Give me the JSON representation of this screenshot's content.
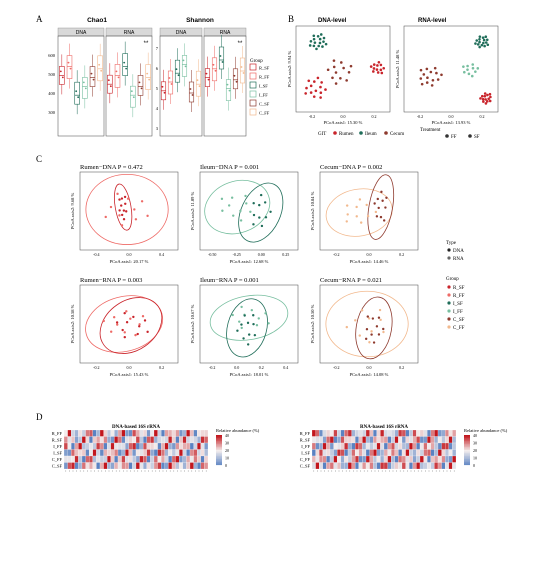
{
  "panel_labels": {
    "a": "A",
    "b": "B",
    "c": "C",
    "d": "D"
  },
  "colors": {
    "R_SF": "#c9242b",
    "R_FF": "#ee6a66",
    "I_SF": "#1f6d59",
    "I_FF": "#78bfa0",
    "C_SF": "#8e3a2e",
    "C_FF": "#f2b98e",
    "DNA": "#222222",
    "RNA": "#666666",
    "heat_high": "#c2161d",
    "heat_mid": "#f3eded",
    "heat_low": "#5a82c2"
  },
  "panel_a": {
    "groups": [
      {
        "name": "Chao1",
        "subpanels": [
          {
            "label": "DNA",
            "sig": ""
          },
          {
            "label": "RNA",
            "sig": "**"
          }
        ]
      },
      {
        "name": "Shannon",
        "subpanels": [
          {
            "label": "DNA",
            "sig": ""
          },
          {
            "label": "RNA",
            "sig": "**"
          }
        ]
      }
    ],
    "chao_ticks": [
      "600",
      "500",
      "400",
      "300"
    ],
    "shannon_ticks": [
      "7",
      "6",
      "5",
      "4",
      "3"
    ],
    "legend_title": "Group",
    "legend_items": [
      "R_SF",
      "R_FF",
      "I_SF",
      "I_FF",
      "C_SF",
      "C_FF"
    ]
  },
  "panel_b": {
    "plots": [
      {
        "title": "DNA-level",
        "ylabel": "PCoA axis2: 9.94 %",
        "xlabel": "PCoA axis1: 15.30 %",
        "xticks": [
          "-0.2",
          "0.0",
          "0.2"
        ]
      },
      {
        "title": "RNA-level",
        "ylabel": "PCoA axis2: 11.48 %",
        "xlabel": "PCoA axis1: 13.93 %",
        "xticks": [
          "-0.2",
          "0.0",
          "0.2"
        ]
      }
    ],
    "legend_git_title": "GIT",
    "legend_git": [
      "Rumen",
      "Ileum",
      "Cecum"
    ],
    "legend_treat_title": "Treatment",
    "legend_treat": [
      "FF",
      "SF"
    ]
  },
  "panel_c": {
    "plots": [
      {
        "region": "Rumen",
        "title": "Rumen−DNA",
        "p": "P = 0.472",
        "xlabel": "PCoA axis1: 20.17 %",
        "ylabel": "PCoA axis2: 9.68 %",
        "xticks": [
          "-0.4",
          "0.0",
          "0.4"
        ]
      },
      {
        "region": "Ileum",
        "title": "Ileum−DNA",
        "p": "P = 0.001",
        "xlabel": "PCoA axis1: 12.68 %",
        "ylabel": "PCoA axis2: 11.09 %",
        "xticks": [
          "-0.50",
          "-0.25",
          "0.00",
          "0.25"
        ]
      },
      {
        "region": "Cecum",
        "title": "Cecum−DNA",
        "p": "P = 0.002",
        "xlabel": "PCoA axis1: 14.46 %",
        "ylabel": "PCoA axis2: 10.84 %",
        "xticks": [
          "-0.2",
          "0.0",
          "0.2"
        ]
      },
      {
        "region": "Rumen",
        "title": "Rumen−RNA",
        "p": "P = 0.003",
        "xlabel": "PCoA axis1: 15.43 %",
        "ylabel": "PCoA axis2: 10.58 %",
        "xticks": [
          "-0.2",
          "0.0",
          "0.2"
        ]
      },
      {
        "region": "Ileum",
        "title": "Ileum−RNA",
        "p": "P = 0.001",
        "xlabel": "PCoA axis1: 18.01 %",
        "ylabel": "PCoA axis2: 10.67 %",
        "xticks": [
          "-0.2",
          "0.0",
          "0.2",
          "0.4"
        ]
      },
      {
        "region": "Cecum",
        "title": "Cecum−RNA",
        "p": "P = 0.021",
        "xlabel": "PCoA axis1: 14.08 %",
        "ylabel": "PCoA axis2: 10.50 %",
        "xticks": [
          "-0.2",
          "0.0",
          "0.2"
        ]
      }
    ],
    "legend_type_title": "Type",
    "legend_type": [
      "DNA",
      "RNA"
    ],
    "legend_group_title": "Group",
    "legend_group": [
      "R_SF",
      "R_FF",
      "I_SF",
      "I_FF",
      "C_SF",
      "C_FF"
    ]
  },
  "panel_d": {
    "heatmaps": [
      {
        "title": "DNA-based 16S rRNA",
        "rows": [
          "R_FF",
          "R_SF",
          "I_FF",
          "I_SF",
          "C_FF",
          "C_SF"
        ],
        "legend_title": "Relative abundance (%)",
        "legend_ticks": [
          "40",
          "30",
          "20",
          "10",
          "0"
        ]
      },
      {
        "title": "RNA-based 16S rRNA",
        "rows": [
          "R_FF",
          "R_SF",
          "I_FF",
          "I_SF",
          "C_FF",
          "C_SF"
        ],
        "legend_title": "Relative abundance (%)",
        "legend_ticks": [
          "40",
          "30",
          "20",
          "10",
          "0"
        ]
      }
    ]
  }
}
